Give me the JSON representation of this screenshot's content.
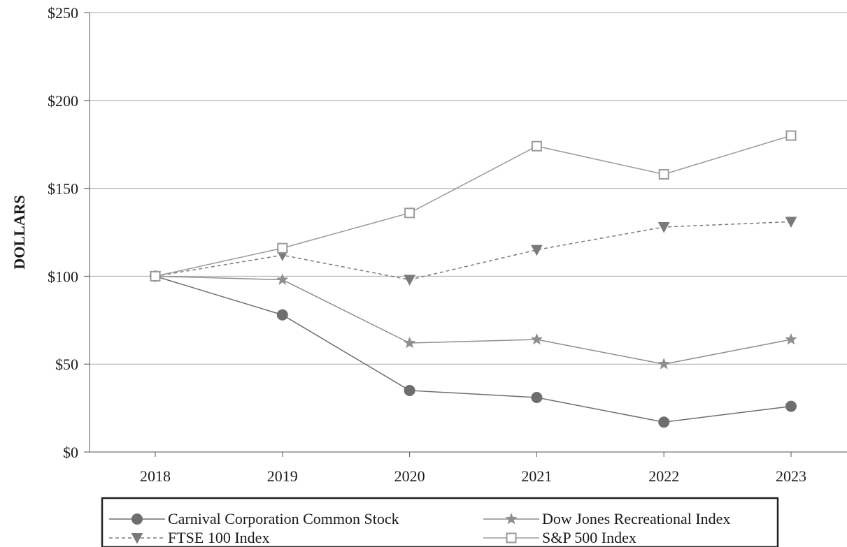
{
  "chart_data": {
    "type": "line",
    "title": "",
    "xlabel": "",
    "ylabel": "DOLLARS",
    "categories": [
      "2018",
      "2019",
      "2020",
      "2021",
      "2022",
      "2023"
    ],
    "ylim": [
      0,
      250
    ],
    "yticks": [
      0,
      50,
      100,
      150,
      200,
      250
    ],
    "ytick_labels": [
      "$0",
      "$50",
      "$100",
      "$150",
      "$200",
      "$250"
    ],
    "grid": "horizontal",
    "legend_placement": "bottom",
    "series": [
      {
        "name": "Carnival Corporation Common Stock",
        "values": [
          100,
          78,
          35,
          31,
          17,
          26
        ],
        "marker": "circle",
        "line": "solid",
        "color": "#6e6e70"
      },
      {
        "name": "Dow Jones Recreational Index",
        "values": [
          100,
          98,
          62,
          64,
          50,
          64
        ],
        "marker": "star",
        "line": "solid",
        "color": "#8e8e90"
      },
      {
        "name": "FTSE 100 Index",
        "values": [
          100,
          112,
          98,
          115,
          128,
          131
        ],
        "marker": "triangle-down",
        "line": "dashed",
        "color": "#7a7a7c"
      },
      {
        "name": "S&P 500 Index",
        "values": [
          100,
          116,
          136,
          174,
          158,
          180
        ],
        "marker": "square-open",
        "line": "solid",
        "color": "#9a9a9c"
      }
    ]
  }
}
